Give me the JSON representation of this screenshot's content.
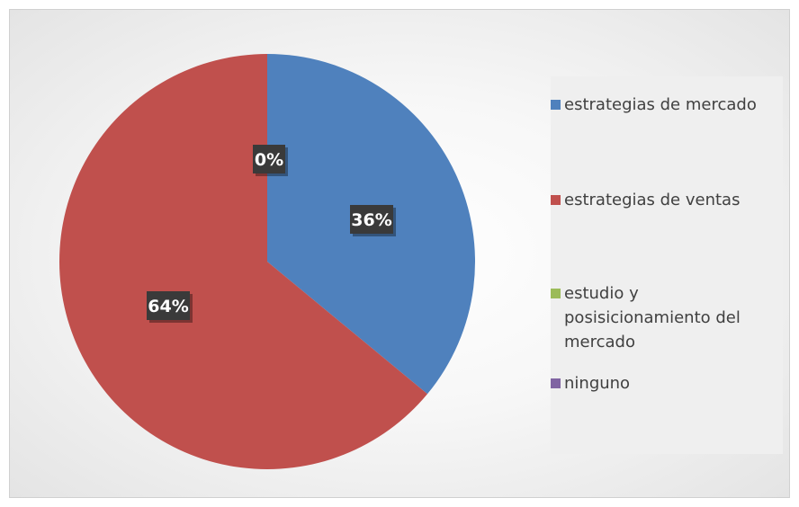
{
  "chart_data": {
    "type": "pie",
    "title": "",
    "categories": [
      "estrategias de mercado",
      "estrategias de ventas",
      "estudio y posisicionamiento del mercado",
      "ninguno"
    ],
    "values": [
      36,
      64,
      0,
      0
    ],
    "data_labels": [
      "36%",
      "64%",
      "0%",
      ""
    ],
    "colors": [
      "#4f81bd",
      "#c0504d",
      "#9bbb59",
      "#8064a2"
    ],
    "legend": "right"
  }
}
